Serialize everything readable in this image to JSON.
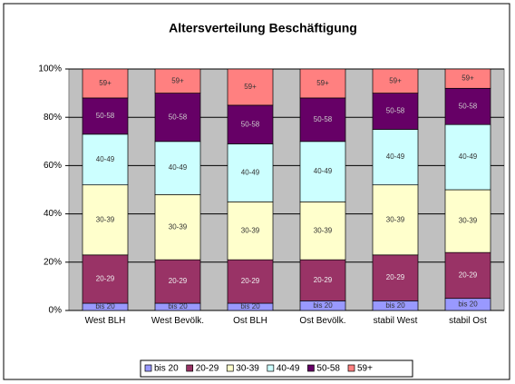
{
  "chart_data": {
    "type": "stacked-bar-100",
    "title": "Altersverteilung Beschäftigung",
    "categories": [
      "West BLH",
      "West Bevölk.",
      "Ost BLH",
      "Ost Bevölk.",
      "stabil West",
      "stabil Ost"
    ],
    "series": [
      {
        "name": "bis 20",
        "color": "#9999ff",
        "values": [
          3,
          3,
          3,
          4,
          4,
          5
        ]
      },
      {
        "name": "20-29",
        "color": "#993366",
        "values": [
          20,
          18,
          18,
          17,
          19,
          19
        ]
      },
      {
        "name": "30-39",
        "color": "#ffffcc",
        "values": [
          29,
          27,
          24,
          24,
          29,
          26
        ]
      },
      {
        "name": "40-49",
        "color": "#ccffff",
        "values": [
          21,
          22,
          24,
          25,
          23,
          27
        ]
      },
      {
        "name": "50-58",
        "color": "#660066",
        "values": [
          15,
          20,
          16,
          18,
          15,
          15
        ]
      },
      {
        "name": "59+",
        "color": "#ff8080",
        "values": [
          12,
          10,
          15,
          12,
          10,
          8
        ]
      }
    ],
    "ylim": [
      0,
      100
    ],
    "yticks": [
      {
        "value": 0,
        "label": "0%"
      },
      {
        "value": 20,
        "label": "20%"
      },
      {
        "value": 40,
        "label": "40%"
      },
      {
        "value": 60,
        "label": "60%"
      },
      {
        "value": 80,
        "label": "80%"
      },
      {
        "value": 100,
        "label": "100%"
      }
    ],
    "grid": true,
    "legend": "bottom"
  }
}
